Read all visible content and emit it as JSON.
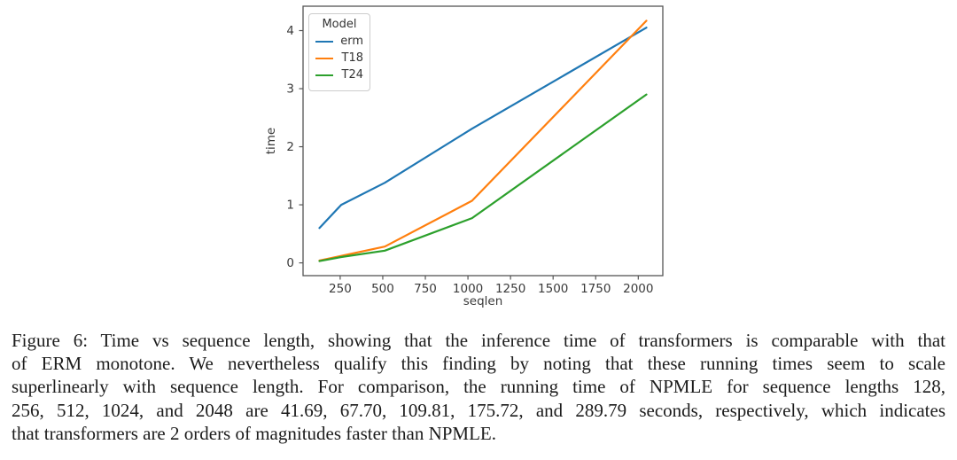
{
  "figure": {
    "caption_lines": [
      "Figure 6: Time vs sequence length, showing that the inference time of transformers is comparable with that",
      "of ERM monotone. We nevertheless qualify this finding by noting that these running times seem to scale",
      "superlinearly with sequence length. For comparison, the running time of NPMLE for sequence lengths 128,",
      "256, 512, 1024, and 2048 are 41.69, 67.70, 109.81, 175.72, and 289.79 seconds, respectively, which indicates",
      "that transformers are 2 orders of magnitudes faster than NPMLE."
    ]
  },
  "chart_data": {
    "type": "line",
    "title": "",
    "xlabel": "seqlen",
    "ylabel": "time",
    "x": [
      128,
      256,
      512,
      1024,
      2048
    ],
    "series": [
      {
        "name": "erm",
        "color": "#1f77b4",
        "values": [
          0.6,
          1.0,
          1.38,
          2.31,
          4.05
        ]
      },
      {
        "name": "T18",
        "color": "#ff7f0e",
        "values": [
          0.04,
          0.12,
          0.28,
          1.07,
          4.17
        ]
      },
      {
        "name": "T24",
        "color": "#2ca02c",
        "values": [
          0.03,
          0.1,
          0.21,
          0.77,
          2.9
        ]
      }
    ],
    "legend_title": "Model",
    "legend_position": "upper left",
    "xlim": [
      32,
      2144
    ],
    "ylim": [
      -0.22,
      4.42
    ],
    "xticks": [
      250,
      500,
      750,
      1000,
      1250,
      1500,
      1750,
      2000
    ],
    "yticks": [
      0,
      1,
      2,
      3,
      4
    ],
    "grid": false,
    "axis_color": "#555555",
    "tick_label_color": "#3a3a3a"
  }
}
